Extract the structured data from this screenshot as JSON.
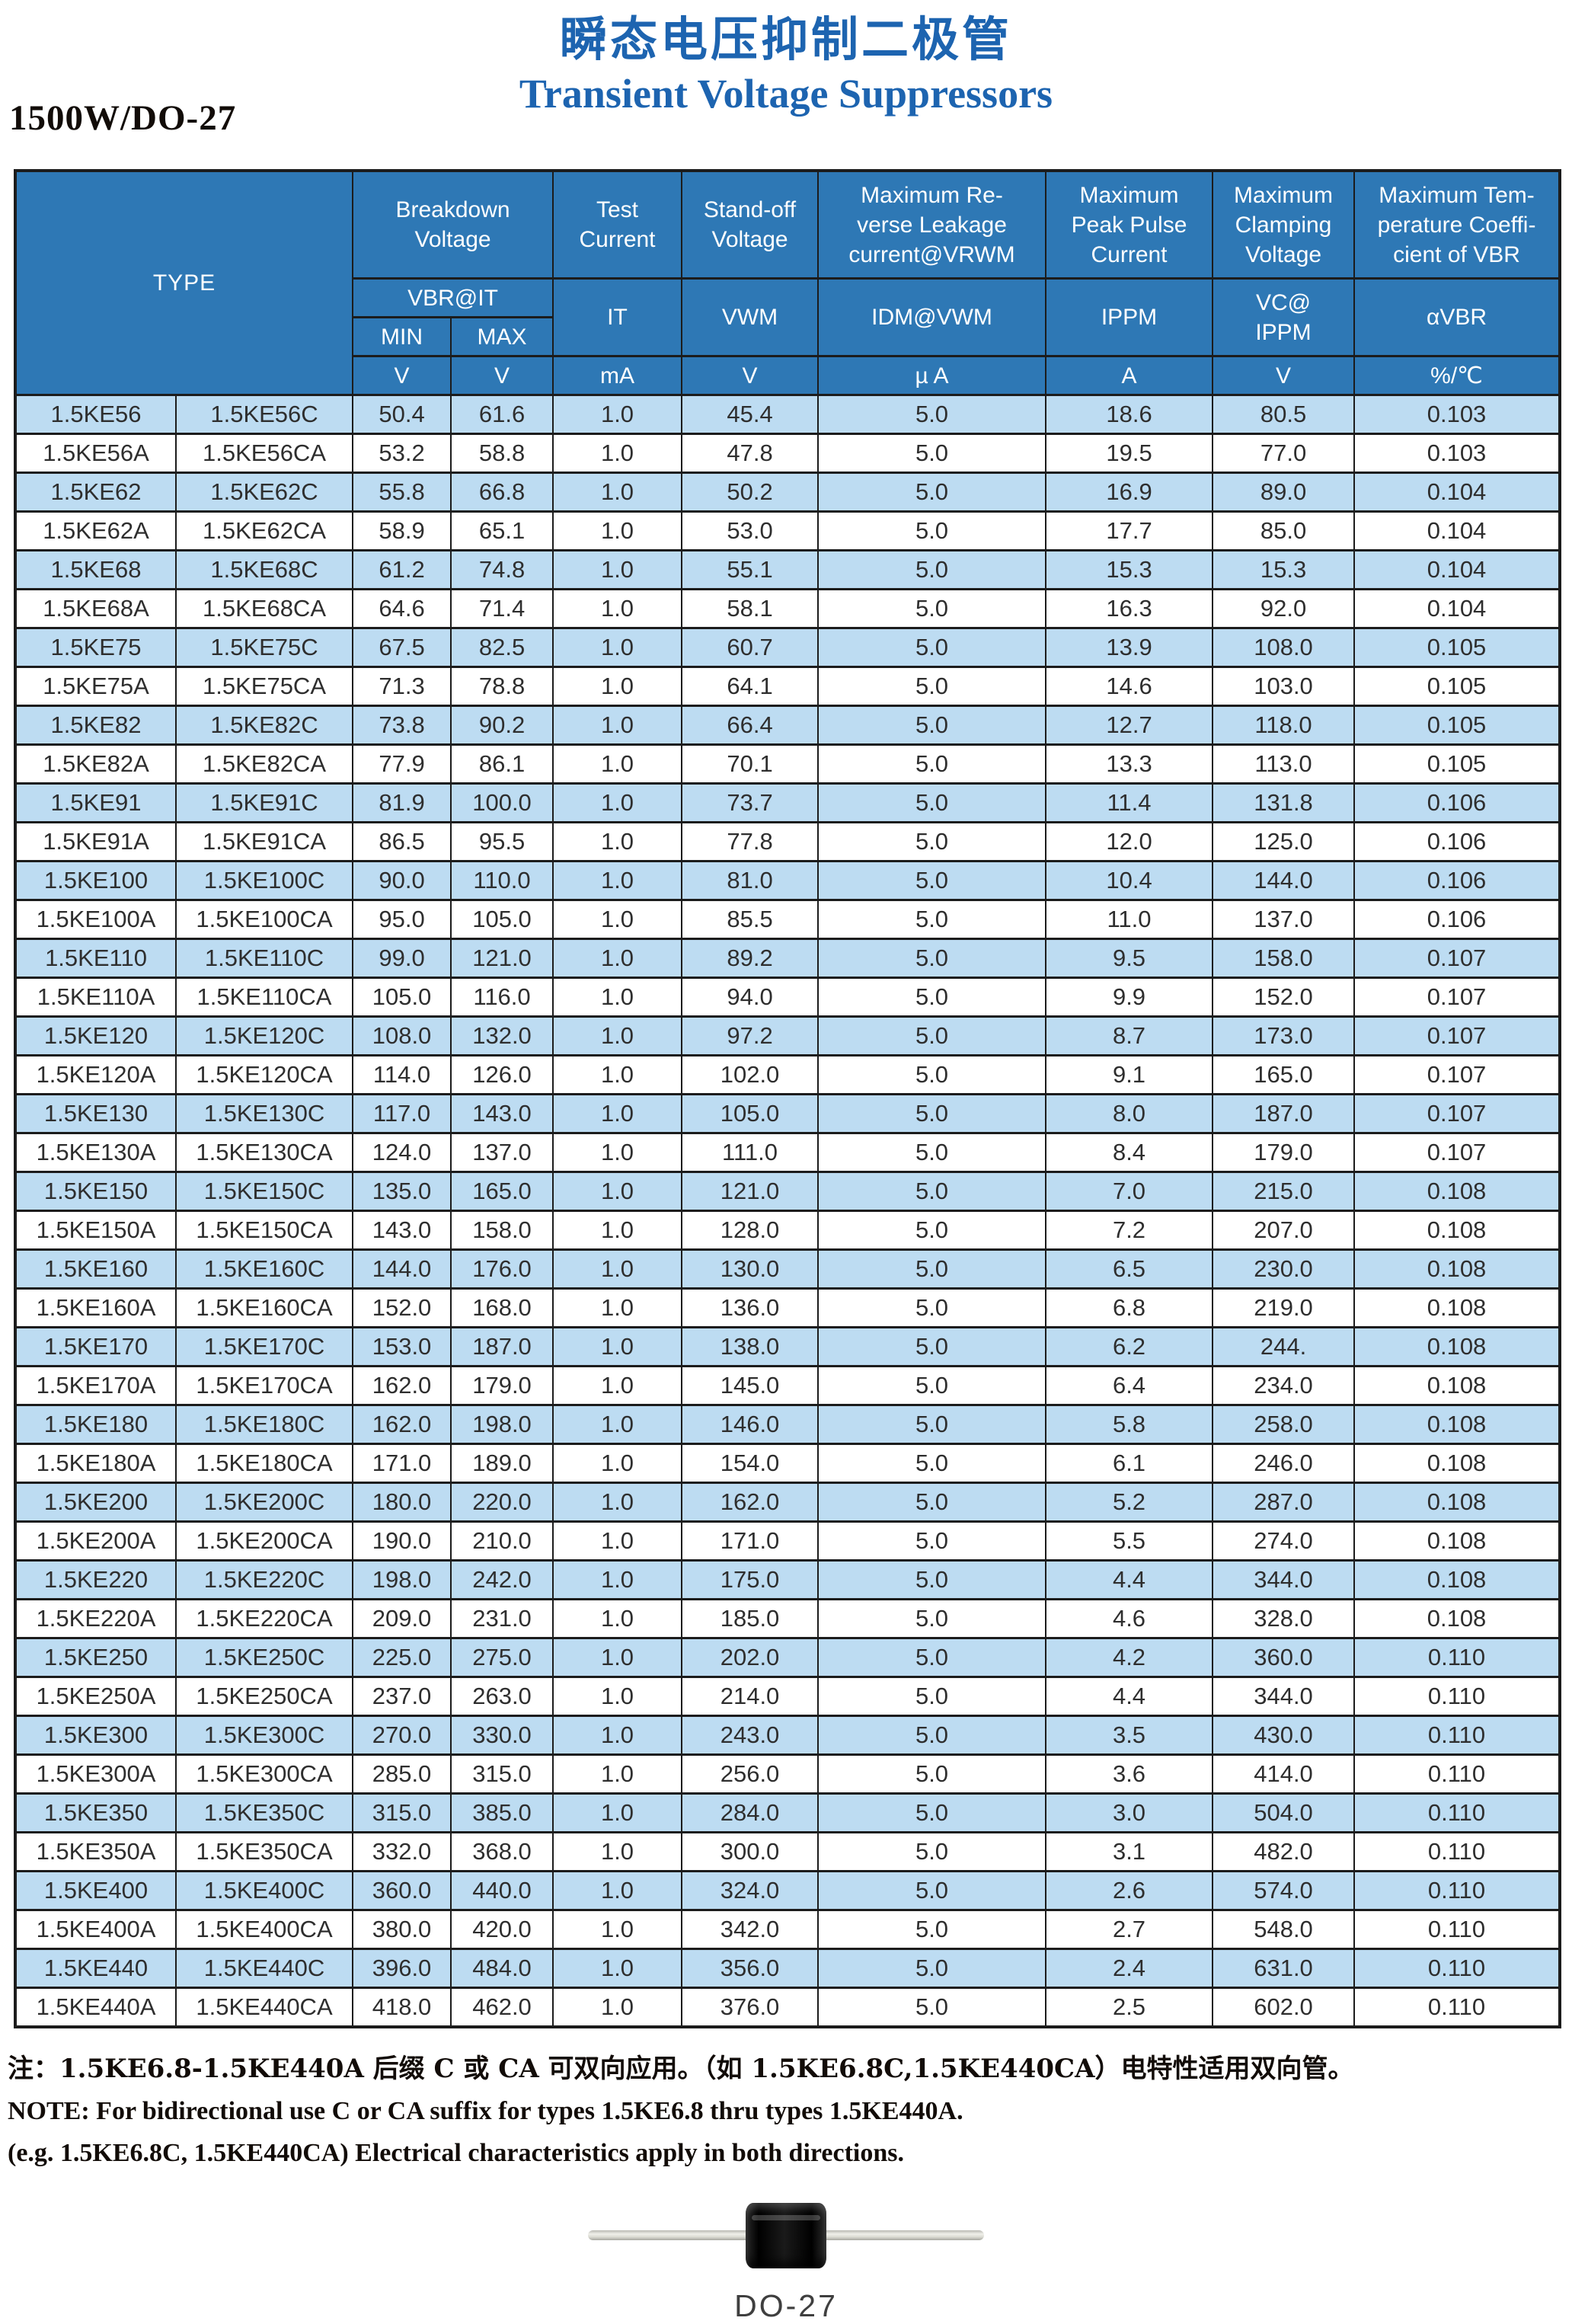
{
  "header_block": {
    "model_label": "1500W/DO-27",
    "title_zh": "瞬态电压抑制二极管",
    "title_en": "Transient Voltage Suppressors"
  },
  "table": {
    "type_label": "TYPE",
    "group_headers": {
      "breakdown": "Breakdown\nVoltage",
      "test_current": "Test\nCurrent",
      "standoff": "Stand-off\nVoltage",
      "reverse_leakage": "Maximum Re-\nverse Leakage\ncurrent@VRWM",
      "peak_pulse": "Maximum\nPeak Pulse\nCurrent",
      "clamping": "Maximum\nClamping\nVoltage",
      "temp_coeff": "Maximum Tem-\nperature Coeffi-\ncient of VBR"
    },
    "symbol_headers": {
      "vbr_it": "VBR@IT",
      "min": "MIN",
      "max": "MAX",
      "it": "IT",
      "vwm": "VWM",
      "idm": "IDM@VWM",
      "ippm": "IPPM",
      "vc": "VC@\nIPPM",
      "avbr": "αVBR"
    },
    "units": [
      "V",
      "V",
      "mA",
      "V",
      "µ A",
      "A",
      "V",
      "%/℃"
    ],
    "rows": [
      [
        "1.5KE56",
        "1.5KE56C",
        "50.4",
        "61.6",
        "1.0",
        "45.4",
        "5.0",
        "18.6",
        "80.5",
        "0.103"
      ],
      [
        "1.5KE56A",
        "1.5KE56CA",
        "53.2",
        "58.8",
        "1.0",
        "47.8",
        "5.0",
        "19.5",
        "77.0",
        "0.103"
      ],
      [
        "1.5KE62",
        "1.5KE62C",
        "55.8",
        "66.8",
        "1.0",
        "50.2",
        "5.0",
        "16.9",
        "89.0",
        "0.104"
      ],
      [
        "1.5KE62A",
        "1.5KE62CA",
        "58.9",
        "65.1",
        "1.0",
        "53.0",
        "5.0",
        "17.7",
        "85.0",
        "0.104"
      ],
      [
        "1.5KE68",
        "1.5KE68C",
        "61.2",
        "74.8",
        "1.0",
        "55.1",
        "5.0",
        "15.3",
        "15.3",
        "0.104"
      ],
      [
        "1.5KE68A",
        "1.5KE68CA",
        "64.6",
        "71.4",
        "1.0",
        "58.1",
        "5.0",
        "16.3",
        "92.0",
        "0.104"
      ],
      [
        "1.5KE75",
        "1.5KE75C",
        "67.5",
        "82.5",
        "1.0",
        "60.7",
        "5.0",
        "13.9",
        "108.0",
        "0.105"
      ],
      [
        "1.5KE75A",
        "1.5KE75CA",
        "71.3",
        "78.8",
        "1.0",
        "64.1",
        "5.0",
        "14.6",
        "103.0",
        "0.105"
      ],
      [
        "1.5KE82",
        "1.5KE82C",
        "73.8",
        "90.2",
        "1.0",
        "66.4",
        "5.0",
        "12.7",
        "118.0",
        "0.105"
      ],
      [
        "1.5KE82A",
        "1.5KE82CA",
        "77.9",
        "86.1",
        "1.0",
        "70.1",
        "5.0",
        "13.3",
        "113.0",
        "0.105"
      ],
      [
        "1.5KE91",
        "1.5KE91C",
        "81.9",
        "100.0",
        "1.0",
        "73.7",
        "5.0",
        "11.4",
        "131.8",
        "0.106"
      ],
      [
        "1.5KE91A",
        "1.5KE91CA",
        "86.5",
        "95.5",
        "1.0",
        "77.8",
        "5.0",
        "12.0",
        "125.0",
        "0.106"
      ],
      [
        "1.5KE100",
        "1.5KE100C",
        "90.0",
        "110.0",
        "1.0",
        "81.0",
        "5.0",
        "10.4",
        "144.0",
        "0.106"
      ],
      [
        "1.5KE100A",
        "1.5KE100CA",
        "95.0",
        "105.0",
        "1.0",
        "85.5",
        "5.0",
        "11.0",
        "137.0",
        "0.106"
      ],
      [
        "1.5KE110",
        "1.5KE110C",
        "99.0",
        "121.0",
        "1.0",
        "89.2",
        "5.0",
        "9.5",
        "158.0",
        "0.107"
      ],
      [
        "1.5KE110A",
        "1.5KE110CA",
        "105.0",
        "116.0",
        "1.0",
        "94.0",
        "5.0",
        "9.9",
        "152.0",
        "0.107"
      ],
      [
        "1.5KE120",
        "1.5KE120C",
        "108.0",
        "132.0",
        "1.0",
        "97.2",
        "5.0",
        "8.7",
        "173.0",
        "0.107"
      ],
      [
        "1.5KE120A",
        "1.5KE120CA",
        "114.0",
        "126.0",
        "1.0",
        "102.0",
        "5.0",
        "9.1",
        "165.0",
        "0.107"
      ],
      [
        "1.5KE130",
        "1.5KE130C",
        "117.0",
        "143.0",
        "1.0",
        "105.0",
        "5.0",
        "8.0",
        "187.0",
        "0.107"
      ],
      [
        "1.5KE130A",
        "1.5KE130CA",
        "124.0",
        "137.0",
        "1.0",
        "111.0",
        "5.0",
        "8.4",
        "179.0",
        "0.107"
      ],
      [
        "1.5KE150",
        "1.5KE150C",
        "135.0",
        "165.0",
        "1.0",
        "121.0",
        "5.0",
        "7.0",
        "215.0",
        "0.108"
      ],
      [
        "1.5KE150A",
        "1.5KE150CA",
        "143.0",
        "158.0",
        "1.0",
        "128.0",
        "5.0",
        "7.2",
        "207.0",
        "0.108"
      ],
      [
        "1.5KE160",
        "1.5KE160C",
        "144.0",
        "176.0",
        "1.0",
        "130.0",
        "5.0",
        "6.5",
        "230.0",
        "0.108"
      ],
      [
        "1.5KE160A",
        "1.5KE160CA",
        "152.0",
        "168.0",
        "1.0",
        "136.0",
        "5.0",
        "6.8",
        "219.0",
        "0.108"
      ],
      [
        "1.5KE170",
        "1.5KE170C",
        "153.0",
        "187.0",
        "1.0",
        "138.0",
        "5.0",
        "6.2",
        "244.",
        "0.108"
      ],
      [
        "1.5KE170A",
        "1.5KE170CA",
        "162.0",
        "179.0",
        "1.0",
        "145.0",
        "5.0",
        "6.4",
        "234.0",
        "0.108"
      ],
      [
        "1.5KE180",
        "1.5KE180C",
        "162.0",
        "198.0",
        "1.0",
        "146.0",
        "5.0",
        "5.8",
        "258.0",
        "0.108"
      ],
      [
        "1.5KE180A",
        "1.5KE180CA",
        "171.0",
        "189.0",
        "1.0",
        "154.0",
        "5.0",
        "6.1",
        "246.0",
        "0.108"
      ],
      [
        "1.5KE200",
        "1.5KE200C",
        "180.0",
        "220.0",
        "1.0",
        "162.0",
        "5.0",
        "5.2",
        "287.0",
        "0.108"
      ],
      [
        "1.5KE200A",
        "1.5KE200CA",
        "190.0",
        "210.0",
        "1.0",
        "171.0",
        "5.0",
        "5.5",
        "274.0",
        "0.108"
      ],
      [
        "1.5KE220",
        "1.5KE220C",
        "198.0",
        "242.0",
        "1.0",
        "175.0",
        "5.0",
        "4.4",
        "344.0",
        "0.108"
      ],
      [
        "1.5KE220A",
        "1.5KE220CA",
        "209.0",
        "231.0",
        "1.0",
        "185.0",
        "5.0",
        "4.6",
        "328.0",
        "0.108"
      ],
      [
        "1.5KE250",
        "1.5KE250C",
        "225.0",
        "275.0",
        "1.0",
        "202.0",
        "5.0",
        "4.2",
        "360.0",
        "0.110"
      ],
      [
        "1.5KE250A",
        "1.5KE250CA",
        "237.0",
        "263.0",
        "1.0",
        "214.0",
        "5.0",
        "4.4",
        "344.0",
        "0.110"
      ],
      [
        "1.5KE300",
        "1.5KE300C",
        "270.0",
        "330.0",
        "1.0",
        "243.0",
        "5.0",
        "3.5",
        "430.0",
        "0.110"
      ],
      [
        "1.5KE300A",
        "1.5KE300CA",
        "285.0",
        "315.0",
        "1.0",
        "256.0",
        "5.0",
        "3.6",
        "414.0",
        "0.110"
      ],
      [
        "1.5KE350",
        "1.5KE350C",
        "315.0",
        "385.0",
        "1.0",
        "284.0",
        "5.0",
        "3.0",
        "504.0",
        "0.110"
      ],
      [
        "1.5KE350A",
        "1.5KE350CA",
        "332.0",
        "368.0",
        "1.0",
        "300.0",
        "5.0",
        "3.1",
        "482.0",
        "0.110"
      ],
      [
        "1.5KE400",
        "1.5KE400C",
        "360.0",
        "440.0",
        "1.0",
        "324.0",
        "5.0",
        "2.6",
        "574.0",
        "0.110"
      ],
      [
        "1.5KE400A",
        "1.5KE400CA",
        "380.0",
        "420.0",
        "1.0",
        "342.0",
        "5.0",
        "2.7",
        "548.0",
        "0.110"
      ],
      [
        "1.5KE440",
        "1.5KE440C",
        "396.0",
        "484.0",
        "1.0",
        "356.0",
        "5.0",
        "2.4",
        "631.0",
        "0.110"
      ],
      [
        "1.5KE440A",
        "1.5KE440CA",
        "418.0",
        "462.0",
        "1.0",
        "376.0",
        "5.0",
        "2.5",
        "602.0",
        "0.110"
      ]
    ]
  },
  "notes": {
    "line1": "注：1.5KE6.8-1.5KE440A 后缀 C 或 CA 可双向应用。（如 1.5KE6.8C,1.5KE440CA）电特性适用双向管。",
    "line2": "NOTE: For bidirectional use C or CA suffix for types 1.5KE6.8 thru types 1.5KE440A.",
    "line3": "(e.g. 1.5KE6.8C, 1.5KE440CA) Electrical characteristics apply in both directions."
  },
  "footer": {
    "package_label": "DO-27"
  },
  "colors": {
    "header_bg": "#2e78b5",
    "row_alt_bg": "#bddcf2",
    "title_blue": "#1d64b0",
    "border": "#1c1c1c"
  }
}
